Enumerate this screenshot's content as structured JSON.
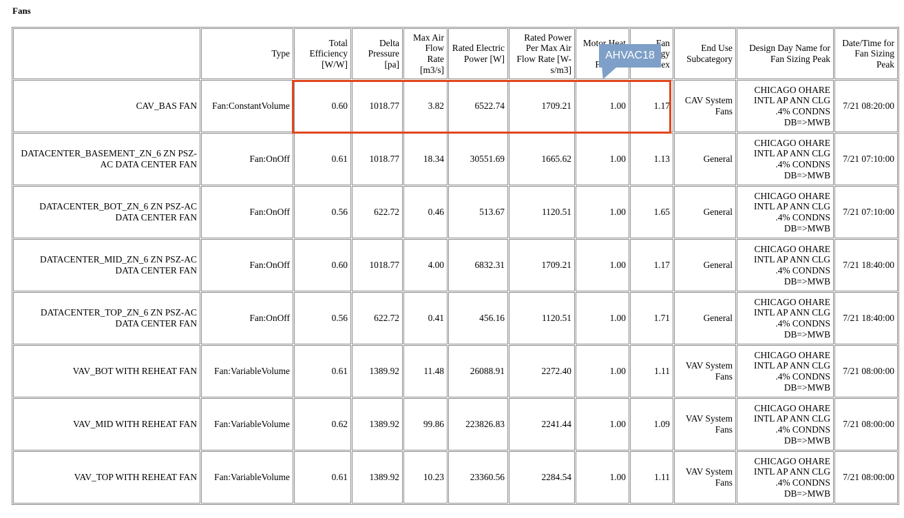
{
  "title": "Fans",
  "headers": [
    "",
    "Type",
    "Total Efficiency [W/W]",
    "Delta Pressure [pa]",
    "Max Air Flow Rate [m3/s]",
    "Rated Electric Power [W]",
    "Rated Power Per Max Air Flow Rate [W-s/m3]",
    "Motor Heat In Air Fraction",
    "Fan Energy Index",
    "End Use Subcategory",
    "Design Day Name for Fan Sizing Peak",
    "Date/Time for Fan Sizing Peak"
  ],
  "rows": [
    [
      "CAV_BAS FAN",
      "Fan:ConstantVolume",
      "0.60",
      "1018.77",
      "3.82",
      "6522.74",
      "1709.21",
      "1.00",
      "1.17",
      "CAV System Fans",
      "CHICAGO OHARE INTL AP ANN CLG .4% CONDNS DB=>MWB",
      "7/21 08:20:00"
    ],
    [
      "DATACENTER_BASEMENT_ZN_6 ZN PSZ-AC DATA CENTER FAN",
      "Fan:OnOff",
      "0.61",
      "1018.77",
      "18.34",
      "30551.69",
      "1665.62",
      "1.00",
      "1.13",
      "General",
      "CHICAGO OHARE INTL AP ANN CLG .4% CONDNS DB=>MWB",
      "7/21 07:10:00"
    ],
    [
      "DATACENTER_BOT_ZN_6 ZN PSZ-AC DATA CENTER FAN",
      "Fan:OnOff",
      "0.56",
      "622.72",
      "0.46",
      "513.67",
      "1120.51",
      "1.00",
      "1.65",
      "General",
      "CHICAGO OHARE INTL AP ANN CLG .4% CONDNS DB=>MWB",
      "7/21 07:10:00"
    ],
    [
      "DATACENTER_MID_ZN_6 ZN PSZ-AC DATA CENTER FAN",
      "Fan:OnOff",
      "0.60",
      "1018.77",
      "4.00",
      "6832.31",
      "1709.21",
      "1.00",
      "1.17",
      "General",
      "CHICAGO OHARE INTL AP ANN CLG .4% CONDNS DB=>MWB",
      "7/21 18:40:00"
    ],
    [
      "DATACENTER_TOP_ZN_6 ZN PSZ-AC DATA CENTER FAN",
      "Fan:OnOff",
      "0.56",
      "622.72",
      "0.41",
      "456.16",
      "1120.51",
      "1.00",
      "1.71",
      "General",
      "CHICAGO OHARE INTL AP ANN CLG .4% CONDNS DB=>MWB",
      "7/21 18:40:00"
    ],
    [
      "VAV_BOT WITH REHEAT FAN",
      "Fan:VariableVolume",
      "0.61",
      "1389.92",
      "11.48",
      "26088.91",
      "2272.40",
      "1.00",
      "1.11",
      "VAV System Fans",
      "CHICAGO OHARE INTL AP ANN CLG .4% CONDNS DB=>MWB",
      "7/21 08:00:00"
    ],
    [
      "VAV_MID WITH REHEAT FAN",
      "Fan:VariableVolume",
      "0.62",
      "1389.92",
      "99.86",
      "223826.83",
      "2241.44",
      "1.00",
      "1.09",
      "VAV System Fans",
      "CHICAGO OHARE INTL AP ANN CLG .4% CONDNS DB=>MWB",
      "7/21 08:00:00"
    ],
    [
      "VAV_TOP WITH REHEAT FAN",
      "Fan:VariableVolume",
      "0.61",
      "1389.92",
      "10.23",
      "23360.56",
      "2284.54",
      "1.00",
      "1.11",
      "VAV System Fans",
      "CHICAGO OHARE INTL AP ANN CLG .4% CONDNS DB=>MWB",
      "7/21 08:00:00"
    ]
  ],
  "annotation": {
    "label": "AHVAC18",
    "highlight_color": "#e1461e",
    "tooltip_color": "#7e9fc7"
  }
}
